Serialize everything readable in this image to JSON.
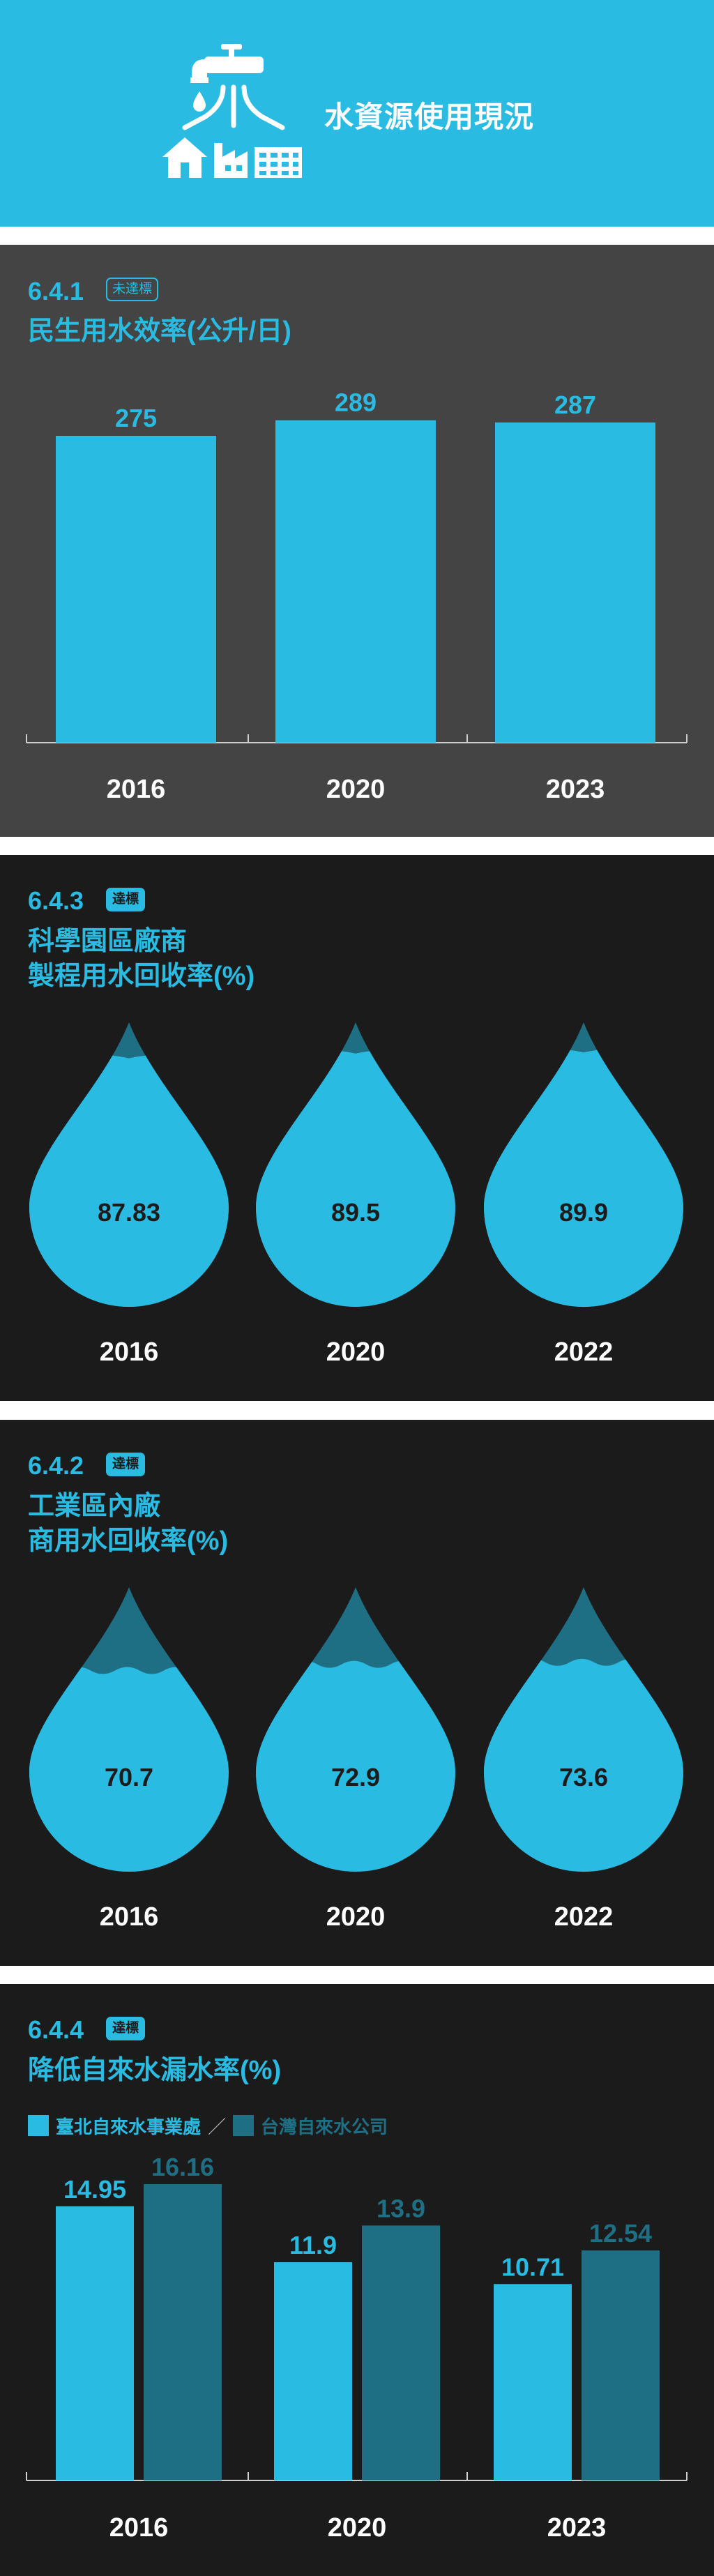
{
  "header": {
    "title": "水資源使用現況",
    "icon": "faucet-water-icon"
  },
  "colors": {
    "accent": "#2abbe2",
    "dark_series": "#1f6f84",
    "panel_gray": "#444444",
    "panel_black": "#1b1b1c",
    "text_dark": "#1b1b1c"
  },
  "sections": [
    {
      "code": "6.4.1",
      "badge": "未達標",
      "title_lines": [
        "民生用水效率(公升/日)"
      ]
    },
    {
      "code": "6.4.3",
      "badge": "達標",
      "title_lines": [
        "科學園區廠商",
        "製程用水回收率(%)"
      ]
    },
    {
      "code": "6.4.2",
      "badge": "達標",
      "title_lines": [
        "工業區內廠",
        "商用水回收率(%)"
      ]
    },
    {
      "code": "6.4.4",
      "badge": "達標",
      "title_lines": [
        "降低自來水漏水率(%)"
      ]
    }
  ],
  "chart_data": [
    {
      "type": "bar",
      "title": "民生用水效率(公升/日)",
      "categories": [
        "2016",
        "2020",
        "2023"
      ],
      "values": [
        275,
        289,
        287
      ],
      "labels": [
        "275",
        "289",
        "287"
      ]
    },
    {
      "type": "bar",
      "style": "water-drop",
      "title": "科學園區廠商製程用水回收率(%)",
      "categories": [
        "2016",
        "2020",
        "2022"
      ],
      "values": [
        87.83,
        89.5,
        89.9
      ],
      "labels": [
        "87.83",
        "89.5",
        "89.9"
      ]
    },
    {
      "type": "bar",
      "style": "water-drop",
      "title": "工業區內廠商用水回收率(%)",
      "categories": [
        "2016",
        "2020",
        "2022"
      ],
      "values": [
        70.7,
        72.9,
        73.6
      ],
      "labels": [
        "70.7",
        "72.9",
        "73.6"
      ]
    },
    {
      "type": "bar",
      "title": "降低自來水漏水率(%)",
      "categories": [
        "2016",
        "2020",
        "2023"
      ],
      "legend_separator": "／",
      "series": [
        {
          "name": "臺北自來水事業處",
          "values": [
            14.95,
            11.9,
            10.71
          ],
          "labels": [
            "14.95",
            "11.9",
            "10.71"
          ],
          "color": "#2abbe2"
        },
        {
          "name": "台灣自來水公司",
          "values": [
            16.16,
            13.9,
            12.54
          ],
          "labels": [
            "16.16",
            "13.9",
            "12.54"
          ],
          "color": "#1f6f84"
        }
      ]
    }
  ]
}
